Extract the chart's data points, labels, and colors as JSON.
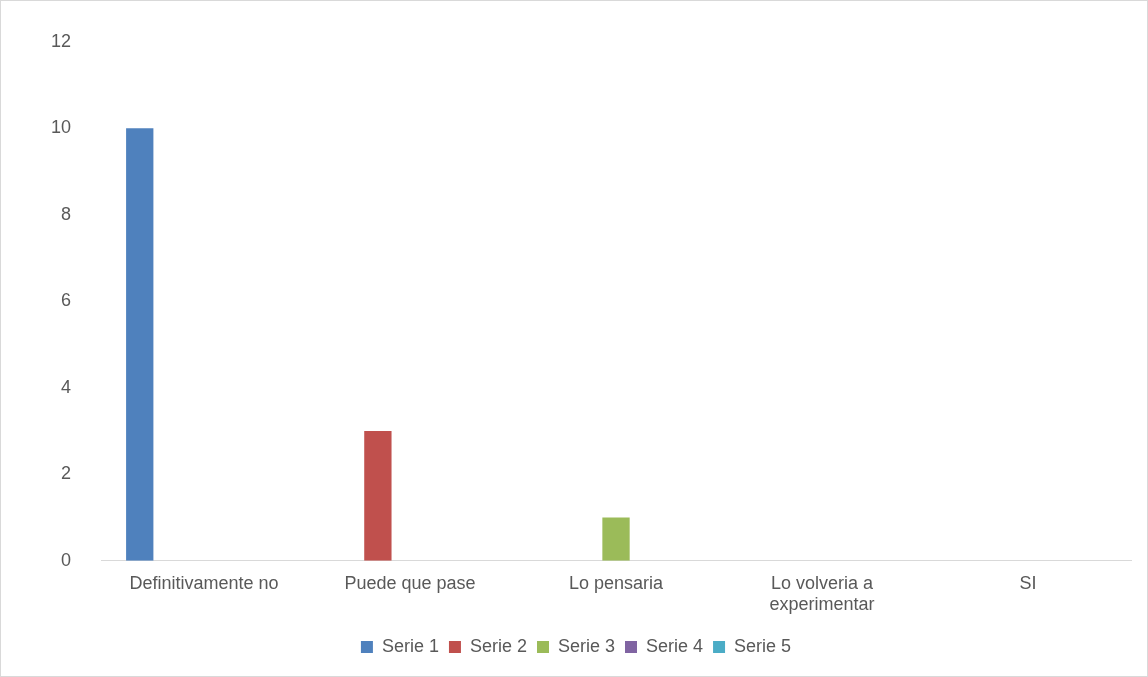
{
  "chart_data": {
    "type": "bar",
    "categories": [
      "Definitivamente no",
      "Puede que pase",
      "Lo pensaria",
      "Lo volveria a experimentar",
      "SI"
    ],
    "series": [
      {
        "name": "Serie 1",
        "color": "#4f81bd",
        "values": [
          10,
          null,
          null,
          null,
          null
        ]
      },
      {
        "name": "Serie 2",
        "color": "#c0504d",
        "values": [
          null,
          3,
          null,
          null,
          null
        ]
      },
      {
        "name": "Serie 3",
        "color": "#9bbb59",
        "values": [
          null,
          null,
          1,
          null,
          null
        ]
      },
      {
        "name": "Serie 4",
        "color": "#8064a2",
        "values": [
          null,
          null,
          null,
          null,
          null
        ]
      },
      {
        "name": "Serie 5",
        "color": "#4bacc6",
        "values": [
          null,
          null,
          null,
          null,
          null
        ]
      }
    ],
    "ylim": [
      0,
      12
    ],
    "yticks": [
      0,
      2,
      4,
      6,
      8,
      10,
      12
    ],
    "grid": false,
    "legend": "bottom"
  }
}
